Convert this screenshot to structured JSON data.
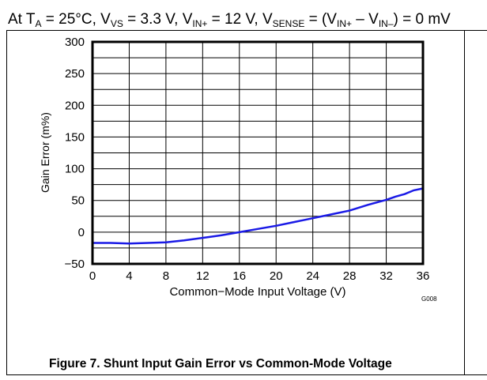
{
  "header": {
    "prefix": "At T",
    "ta_sub": "A",
    "t1": " = 25°C, V",
    "vs_sub": "VS",
    "t2": " = 3.3 V, V",
    "in_sub": "IN+",
    "t3": " = 12 V, V",
    "sense_sub": "SENSE",
    "t4": " = (V",
    "in2_sub": "IN+",
    "t5": " – V",
    "inm_sub": "IN–",
    "t6": ") = 0 mV"
  },
  "caption": "Figure 7. Shunt Input Gain Error vs Common-Mode Voltage",
  "chart_data": {
    "type": "line",
    "title": "",
    "xlabel": "Common−Mode Input Voltage (V)",
    "ylabel": "Gain Error (m%)",
    "xlim": [
      0,
      36
    ],
    "ylim": [
      -50,
      300
    ],
    "xticks": [
      0,
      4,
      8,
      12,
      16,
      20,
      24,
      28,
      32,
      36
    ],
    "yticks": [
      -50,
      0,
      50,
      100,
      150,
      200,
      250,
      300
    ],
    "grid": true,
    "figure_id": "G008",
    "series": [
      {
        "name": "Gain Error",
        "color": "#1a1ae6",
        "x": [
          0,
          2,
          4,
          6,
          8,
          10,
          12,
          14,
          16,
          18,
          20,
          22,
          24,
          26,
          28,
          30,
          32,
          33,
          34,
          35,
          36
        ],
        "y": [
          -17,
          -17,
          -18,
          -17,
          -16,
          -13,
          -9,
          -5,
          0,
          5,
          10,
          16,
          22,
          28,
          34,
          43,
          51,
          56,
          60,
          66,
          69
        ]
      }
    ]
  }
}
